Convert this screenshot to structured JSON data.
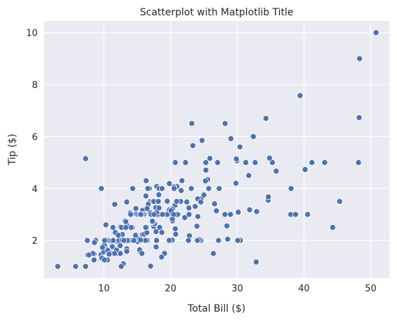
{
  "colors": {
    "plot_bg": "#eaeaf2",
    "grid": "#ffffff",
    "point": "#4c72b0",
    "text": "#262626"
  },
  "chart_data": {
    "type": "scatter",
    "title": "Scatterplot with Matplotlib Title",
    "xlabel": "Total Bill ($)",
    "ylabel": "Tip ($)",
    "xlim": [
      1.0,
      52.8
    ],
    "ylim": [
      0.55,
      10.45
    ],
    "xticks": [
      10,
      20,
      30,
      40,
      50
    ],
    "yticks": [
      2,
      4,
      6,
      8,
      10
    ],
    "grid": true,
    "legend": "none",
    "points": [
      [
        16.99,
        1.01
      ],
      [
        10.34,
        1.66
      ],
      [
        21.01,
        3.5
      ],
      [
        23.68,
        3.31
      ],
      [
        24.59,
        3.61
      ],
      [
        25.29,
        4.71
      ],
      [
        8.77,
        2.0
      ],
      [
        26.88,
        3.12
      ],
      [
        15.04,
        1.96
      ],
      [
        14.78,
        3.23
      ],
      [
        10.27,
        1.71
      ],
      [
        35.26,
        5.0
      ],
      [
        15.42,
        1.57
      ],
      [
        18.43,
        3.0
      ],
      [
        14.83,
        3.02
      ],
      [
        21.58,
        3.92
      ],
      [
        10.33,
        1.67
      ],
      [
        16.29,
        3.71
      ],
      [
        16.97,
        3.5
      ],
      [
        20.65,
        3.35
      ],
      [
        17.92,
        4.08
      ],
      [
        20.29,
        2.75
      ],
      [
        15.77,
        2.23
      ],
      [
        39.42,
        7.58
      ],
      [
        19.82,
        3.18
      ],
      [
        17.81,
        2.34
      ],
      [
        13.37,
        2.0
      ],
      [
        12.69,
        2.0
      ],
      [
        21.7,
        4.3
      ],
      [
        19.65,
        3.0
      ],
      [
        9.55,
        1.45
      ],
      [
        18.35,
        2.5
      ],
      [
        15.06,
        3.0
      ],
      [
        20.69,
        2.45
      ],
      [
        17.78,
        3.27
      ],
      [
        24.06,
        3.6
      ],
      [
        16.31,
        2.0
      ],
      [
        16.93,
        3.07
      ],
      [
        18.69,
        2.31
      ],
      [
        31.27,
        5.0
      ],
      [
        16.04,
        2.24
      ],
      [
        17.46,
        2.54
      ],
      [
        13.94,
        3.06
      ],
      [
        9.68,
        1.32
      ],
      [
        30.4,
        5.6
      ],
      [
        18.29,
        3.0
      ],
      [
        22.23,
        5.0
      ],
      [
        32.4,
        6.0
      ],
      [
        28.55,
        2.05
      ],
      [
        18.04,
        3.0
      ],
      [
        12.54,
        2.5
      ],
      [
        10.29,
        2.6
      ],
      [
        34.81,
        5.2
      ],
      [
        9.94,
        1.56
      ],
      [
        25.56,
        4.34
      ],
      [
        19.49,
        3.51
      ],
      [
        38.01,
        3.0
      ],
      [
        26.41,
        1.5
      ],
      [
        11.24,
        1.76
      ],
      [
        48.27,
        6.73
      ],
      [
        20.29,
        3.21
      ],
      [
        13.81,
        2.0
      ],
      [
        11.02,
        1.98
      ],
      [
        18.29,
        3.76
      ],
      [
        17.59,
        2.64
      ],
      [
        20.08,
        3.15
      ],
      [
        16.45,
        2.47
      ],
      [
        3.07,
        1.0
      ],
      [
        20.23,
        2.01
      ],
      [
        15.01,
        2.09
      ],
      [
        12.02,
        1.97
      ],
      [
        17.07,
        3.0
      ],
      [
        26.86,
        3.14
      ],
      [
        25.28,
        5.0
      ],
      [
        14.73,
        2.2
      ],
      [
        10.51,
        1.25
      ],
      [
        17.92,
        3.08
      ],
      [
        27.2,
        4.0
      ],
      [
        22.76,
        3.0
      ],
      [
        17.29,
        2.71
      ],
      [
        19.44,
        3.0
      ],
      [
        16.66,
        3.4
      ],
      [
        10.07,
        1.83
      ],
      [
        32.68,
        5.0
      ],
      [
        15.98,
        2.03
      ],
      [
        34.83,
        5.17
      ],
      [
        13.03,
        2.0
      ],
      [
        18.28,
        4.0
      ],
      [
        24.71,
        5.85
      ],
      [
        21.16,
        3.0
      ],
      [
        28.97,
        3.0
      ],
      [
        22.49,
        3.5
      ],
      [
        5.75,
        1.0
      ],
      [
        16.32,
        4.3
      ],
      [
        22.75,
        3.25
      ],
      [
        40.17,
        4.73
      ],
      [
        27.28,
        4.0
      ],
      [
        12.03,
        1.5
      ],
      [
        21.01,
        3.0
      ],
      [
        12.46,
        1.5
      ],
      [
        11.35,
        2.5
      ],
      [
        15.38,
        3.0
      ],
      [
        44.3,
        2.5
      ],
      [
        22.42,
        3.48
      ],
      [
        20.92,
        4.08
      ],
      [
        15.36,
        1.64
      ],
      [
        20.49,
        4.06
      ],
      [
        25.21,
        4.29
      ],
      [
        18.24,
        3.76
      ],
      [
        14.31,
        4.0
      ],
      [
        14.0,
        3.0
      ],
      [
        7.25,
        1.0
      ],
      [
        38.07,
        4.0
      ],
      [
        23.95,
        2.55
      ],
      [
        25.71,
        4.0
      ],
      [
        17.31,
        3.5
      ],
      [
        29.93,
        5.07
      ],
      [
        10.65,
        1.5
      ],
      [
        12.43,
        1.8
      ],
      [
        24.08,
        2.92
      ],
      [
        11.69,
        2.31
      ],
      [
        13.42,
        1.68
      ],
      [
        14.26,
        2.5
      ],
      [
        15.95,
        2.0
      ],
      [
        12.48,
        2.52
      ],
      [
        29.8,
        4.2
      ],
      [
        8.52,
        1.48
      ],
      [
        14.52,
        2.0
      ],
      [
        11.38,
        2.0
      ],
      [
        22.82,
        2.18
      ],
      [
        19.08,
        1.5
      ],
      [
        20.27,
        2.83
      ],
      [
        11.17,
        1.5
      ],
      [
        12.26,
        2.0
      ],
      [
        18.26,
        3.25
      ],
      [
        8.51,
        1.25
      ],
      [
        10.33,
        2.0
      ],
      [
        14.15,
        2.0
      ],
      [
        16.0,
        2.0
      ],
      [
        13.16,
        2.75
      ],
      [
        17.47,
        3.5
      ],
      [
        34.3,
        6.7
      ],
      [
        41.19,
        5.0
      ],
      [
        27.05,
        5.0
      ],
      [
        16.43,
        2.3
      ],
      [
        8.35,
        1.5
      ],
      [
        18.64,
        1.36
      ],
      [
        11.87,
        1.63
      ],
      [
        9.78,
        1.73
      ],
      [
        7.51,
        2.0
      ],
      [
        14.07,
        2.5
      ],
      [
        13.13,
        2.0
      ],
      [
        17.26,
        2.74
      ],
      [
        24.55,
        2.0
      ],
      [
        19.77,
        2.0
      ],
      [
        29.85,
        5.14
      ],
      [
        48.17,
        5.0
      ],
      [
        25.0,
        3.75
      ],
      [
        13.39,
        2.61
      ],
      [
        16.49,
        2.0
      ],
      [
        21.5,
        3.5
      ],
      [
        12.66,
        2.5
      ],
      [
        16.21,
        2.0
      ],
      [
        13.81,
        2.0
      ],
      [
        17.51,
        3.0
      ],
      [
        24.52,
        3.48
      ],
      [
        20.76,
        2.24
      ],
      [
        31.71,
        4.5
      ],
      [
        10.59,
        1.61
      ],
      [
        10.63,
        2.0
      ],
      [
        50.81,
        10.0
      ],
      [
        15.81,
        3.16
      ],
      [
        7.25,
        5.15
      ],
      [
        31.85,
        3.18
      ],
      [
        16.82,
        4.0
      ],
      [
        32.9,
        3.11
      ],
      [
        17.89,
        2.0
      ],
      [
        14.48,
        2.0
      ],
      [
        9.6,
        4.0
      ],
      [
        34.63,
        3.55
      ],
      [
        34.65,
        3.68
      ],
      [
        23.33,
        5.65
      ],
      [
        45.35,
        3.5
      ],
      [
        23.17,
        6.5
      ],
      [
        40.55,
        3.0
      ],
      [
        20.69,
        5.0
      ],
      [
        20.9,
        3.5
      ],
      [
        30.46,
        2.0
      ],
      [
        18.15,
        3.5
      ],
      [
        23.1,
        4.0
      ],
      [
        15.69,
        1.5
      ],
      [
        19.81,
        4.19
      ],
      [
        28.44,
        2.56
      ],
      [
        15.48,
        2.02
      ],
      [
        16.58,
        4.0
      ],
      [
        7.56,
        1.44
      ],
      [
        10.34,
        2.0
      ],
      [
        43.11,
        5.0
      ],
      [
        13.0,
        2.0
      ],
      [
        13.51,
        2.0
      ],
      [
        18.71,
        4.0
      ],
      [
        12.74,
        2.01
      ],
      [
        13.0,
        2.0
      ],
      [
        16.4,
        2.5
      ],
      [
        20.53,
        4.0
      ],
      [
        16.47,
        3.23
      ],
      [
        26.59,
        3.41
      ],
      [
        38.73,
        3.0
      ],
      [
        24.27,
        2.03
      ],
      [
        12.76,
        2.23
      ],
      [
        30.06,
        2.0
      ],
      [
        25.89,
        5.16
      ],
      [
        48.33,
        9.0
      ],
      [
        13.27,
        2.5
      ],
      [
        28.17,
        6.5
      ],
      [
        12.9,
        1.1
      ],
      [
        28.15,
        3.0
      ],
      [
        11.59,
        1.5
      ],
      [
        7.74,
        1.44
      ],
      [
        30.14,
        3.09
      ],
      [
        12.16,
        2.2
      ],
      [
        13.42,
        3.48
      ],
      [
        8.58,
        1.92
      ],
      [
        15.98,
        3.0
      ],
      [
        13.42,
        1.58
      ],
      [
        16.27,
        2.5
      ],
      [
        10.09,
        2.0
      ],
      [
        20.45,
        3.0
      ],
      [
        13.28,
        2.72
      ],
      [
        22.12,
        2.88
      ],
      [
        24.01,
        2.0
      ],
      [
        15.69,
        3.0
      ],
      [
        11.61,
        3.39
      ],
      [
        10.77,
        1.47
      ],
      [
        15.53,
        3.0
      ],
      [
        10.07,
        1.25
      ],
      [
        12.6,
        1.0
      ],
      [
        32.83,
        1.17
      ],
      [
        35.83,
        4.67
      ],
      [
        29.03,
        5.92
      ],
      [
        27.18,
        2.0
      ],
      [
        22.67,
        2.0
      ],
      [
        17.82,
        1.75
      ],
      [
        18.78,
        3.0
      ]
    ]
  }
}
